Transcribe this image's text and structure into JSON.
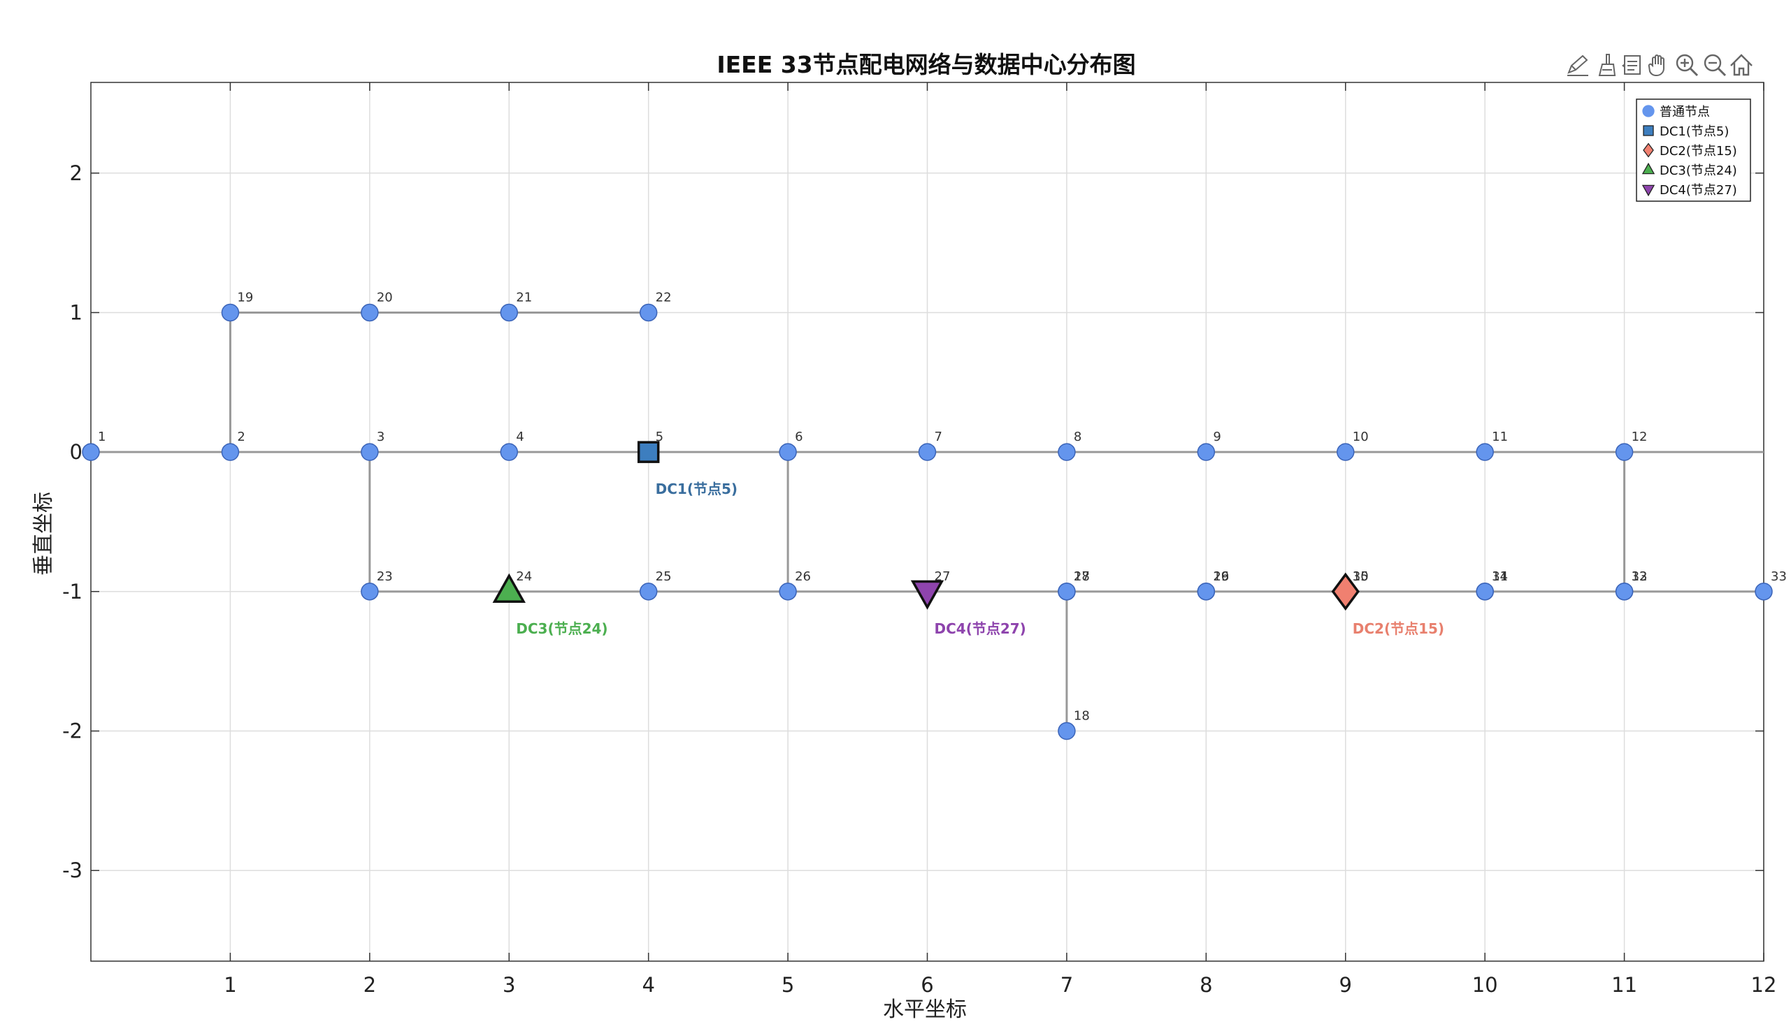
{
  "chart_data": {
    "type": "scatter",
    "title": "IEEE 33节点配电网络与数据中心分布图",
    "xlabel": "水平坐标",
    "ylabel": "垂直坐标",
    "xlim": [
      0,
      12
    ],
    "ylim": [
      -3.65,
      2.65
    ],
    "xticks": [
      1,
      2,
      3,
      4,
      5,
      6,
      7,
      8,
      9,
      10,
      11,
      12
    ],
    "xtick_labels": [
      "1",
      "2",
      "3",
      "4",
      "5",
      "6",
      "7",
      "8",
      "9",
      "10",
      "11",
      "12"
    ],
    "yticks": [
      -3,
      -2,
      -1,
      0,
      1,
      2
    ],
    "ytick_labels": [
      "-3",
      "-2",
      "-1",
      "0",
      "1",
      "2"
    ],
    "grid": true,
    "legend_position": "top-right",
    "legend": [
      {
        "label": "普通节点",
        "marker": "circle",
        "color": "#6495ED"
      },
      {
        "label": "DC1(节点5)",
        "marker": "square",
        "color": "#3D7EBF"
      },
      {
        "label": "DC2(节点15)",
        "marker": "diamond",
        "color": "#F08070"
      },
      {
        "label": "DC3(节点24)",
        "marker": "triangle-up",
        "color": "#4CAF50"
      },
      {
        "label": "DC4(节点27)",
        "marker": "triangle-down",
        "color": "#8E44AD"
      }
    ],
    "nodes": [
      {
        "id": "1",
        "x": 0,
        "y": 0
      },
      {
        "id": "2",
        "x": 1,
        "y": 0
      },
      {
        "id": "3",
        "x": 2,
        "y": 0
      },
      {
        "id": "4",
        "x": 3,
        "y": 0
      },
      {
        "id": "5",
        "x": 4,
        "y": 0
      },
      {
        "id": "6",
        "x": 5,
        "y": 0
      },
      {
        "id": "7",
        "x": 6,
        "y": 0
      },
      {
        "id": "8",
        "x": 7,
        "y": 0
      },
      {
        "id": "9",
        "x": 8,
        "y": 0
      },
      {
        "id": "10",
        "x": 9,
        "y": 0
      },
      {
        "id": "11",
        "x": 10,
        "y": 0
      },
      {
        "id": "12",
        "x": 11,
        "y": 0
      },
      {
        "id": "13",
        "x": 11,
        "y": -1
      },
      {
        "id": "14",
        "x": 10,
        "y": -1
      },
      {
        "id": "15",
        "x": 9,
        "y": -1
      },
      {
        "id": "16",
        "x": 8,
        "y": -1
      },
      {
        "id": "17",
        "x": 7,
        "y": -1
      },
      {
        "id": "18",
        "x": 7,
        "y": -2
      },
      {
        "id": "19",
        "x": 1,
        "y": 1
      },
      {
        "id": "20",
        "x": 2,
        "y": 1
      },
      {
        "id": "21",
        "x": 3,
        "y": 1
      },
      {
        "id": "22",
        "x": 4,
        "y": 1
      },
      {
        "id": "23",
        "x": 2,
        "y": -1
      },
      {
        "id": "24",
        "x": 3,
        "y": -1
      },
      {
        "id": "25",
        "x": 4,
        "y": -1
      },
      {
        "id": "26",
        "x": 5,
        "y": -1
      },
      {
        "id": "27",
        "x": 6,
        "y": -1
      },
      {
        "id": "28",
        "x": 7,
        "y": -1
      },
      {
        "id": "29",
        "x": 8,
        "y": -1
      },
      {
        "id": "30",
        "x": 9,
        "y": -1
      },
      {
        "id": "31",
        "x": 10,
        "y": -1
      },
      {
        "id": "32",
        "x": 11,
        "y": -1
      },
      {
        "id": "33",
        "x": 12,
        "y": -1
      }
    ],
    "edges": [
      [
        [
          0,
          0
        ],
        [
          12,
          0
        ]
      ],
      [
        [
          1,
          0
        ],
        [
          1,
          1
        ]
      ],
      [
        [
          1,
          1
        ],
        [
          4,
          1
        ]
      ],
      [
        [
          2,
          0
        ],
        [
          2,
          -1
        ]
      ],
      [
        [
          2,
          -1
        ],
        [
          12,
          -1
        ]
      ],
      [
        [
          5,
          0
        ],
        [
          5,
          -1
        ]
      ],
      [
        [
          7,
          -1
        ],
        [
          7,
          -2
        ]
      ],
      [
        [
          11,
          0
        ],
        [
          11,
          -1
        ]
      ]
    ],
    "data_centers": [
      {
        "label": "DC1(节点5)",
        "node": "5",
        "x": 4,
        "y": 0,
        "marker": "square",
        "color": "#3D7EBF",
        "text_color": "#3A6E9E"
      },
      {
        "label": "DC2(节点15)",
        "node": "15",
        "x": 9,
        "y": -1,
        "marker": "diamond",
        "color": "#F08070",
        "text_color": "#E8806E"
      },
      {
        "label": "DC3(节点24)",
        "node": "24",
        "x": 3,
        "y": -1,
        "marker": "triangle-up",
        "color": "#4CAF50",
        "text_color": "#4CAF50"
      },
      {
        "label": "DC4(节点27)",
        "node": "27",
        "x": 6,
        "y": -1,
        "marker": "triangle-down",
        "color": "#8E44AD",
        "text_color": "#8E44AD"
      }
    ]
  },
  "toolbar": {
    "icons": [
      "edit-icon",
      "brush-icon",
      "data-tips-icon",
      "pan-icon",
      "zoom-in-icon",
      "zoom-out-icon",
      "home-icon"
    ]
  }
}
